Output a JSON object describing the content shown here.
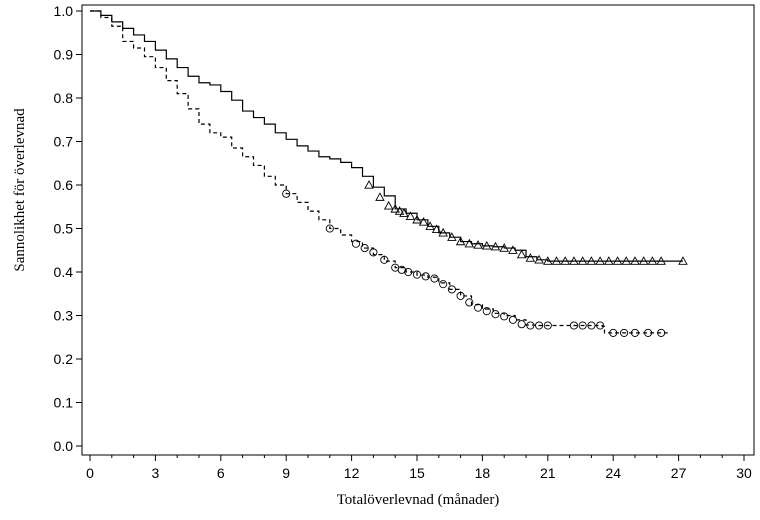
{
  "chart_data": {
    "type": "line",
    "title": "",
    "xlabel": "Totalöverlevnad (månader)",
    "ylabel": "Sannolikhet för överlevnad",
    "xlim": [
      0,
      30
    ],
    "ylim": [
      0,
      1.02
    ],
    "x_ticks": [
      0,
      3,
      6,
      9,
      12,
      15,
      18,
      21,
      24,
      27,
      30
    ],
    "y_ticks": [
      0.0,
      0.1,
      0.2,
      0.3,
      0.4,
      0.5,
      0.6,
      0.7,
      0.8,
      0.9,
      1.0
    ],
    "x_tick_labels": [
      "0",
      "3",
      "6",
      "9",
      "12",
      "15",
      "18",
      "21",
      "24",
      "27",
      "30"
    ],
    "y_tick_labels": [
      "0.0",
      "0.1",
      "0.2",
      "0.3",
      "0.4",
      "0.5",
      "0.6",
      "0.7",
      "0.8",
      "0.9",
      "1.0"
    ],
    "grid": false,
    "series": [
      {
        "line_style": "solid",
        "censor_marker": "triangle",
        "points": [
          [
            0,
            1.0
          ],
          [
            0.5,
            0.99
          ],
          [
            1,
            0.975
          ],
          [
            1.5,
            0.96
          ],
          [
            2,
            0.945
          ],
          [
            2.5,
            0.93
          ],
          [
            3,
            0.91
          ],
          [
            3.5,
            0.89
          ],
          [
            4,
            0.87
          ],
          [
            4.5,
            0.85
          ],
          [
            5,
            0.835
          ],
          [
            5.5,
            0.83
          ],
          [
            6,
            0.815
          ],
          [
            6.5,
            0.795
          ],
          [
            7,
            0.77
          ],
          [
            7.5,
            0.755
          ],
          [
            8,
            0.74
          ],
          [
            8.5,
            0.72
          ],
          [
            9,
            0.705
          ],
          [
            9.5,
            0.69
          ],
          [
            10,
            0.678
          ],
          [
            10.5,
            0.665
          ],
          [
            11,
            0.66
          ],
          [
            11.5,
            0.652
          ],
          [
            12,
            0.64
          ],
          [
            12.5,
            0.62
          ],
          [
            13,
            0.595
          ],
          [
            13.5,
            0.575
          ],
          [
            14,
            0.545
          ],
          [
            14.5,
            0.535
          ],
          [
            15,
            0.52
          ],
          [
            15.5,
            0.505
          ],
          [
            16,
            0.49
          ],
          [
            16.5,
            0.48
          ],
          [
            17,
            0.47
          ],
          [
            17.5,
            0.465
          ],
          [
            18,
            0.46
          ],
          [
            18.5,
            0.458
          ],
          [
            19,
            0.455
          ],
          [
            19.5,
            0.45
          ],
          [
            20,
            0.435
          ],
          [
            20.5,
            0.428
          ],
          [
            21,
            0.425
          ],
          [
            24,
            0.425
          ],
          [
            27.2,
            0.425
          ]
        ],
        "censored": [
          [
            12.8,
            0.6
          ],
          [
            13.3,
            0.572
          ],
          [
            13.7,
            0.552
          ],
          [
            14,
            0.545
          ],
          [
            14.2,
            0.54
          ],
          [
            14.4,
            0.535
          ],
          [
            14.7,
            0.528
          ],
          [
            15,
            0.52
          ],
          [
            15.3,
            0.515
          ],
          [
            15.6,
            0.505
          ],
          [
            15.9,
            0.498
          ],
          [
            16.2,
            0.49
          ],
          [
            16.6,
            0.48
          ],
          [
            17,
            0.47
          ],
          [
            17.4,
            0.465
          ],
          [
            17.8,
            0.462
          ],
          [
            18.2,
            0.46
          ],
          [
            18.6,
            0.458
          ],
          [
            19,
            0.455
          ],
          [
            19.4,
            0.45
          ],
          [
            19.8,
            0.44
          ],
          [
            20.2,
            0.432
          ],
          [
            20.6,
            0.428
          ],
          [
            21,
            0.425
          ],
          [
            21.4,
            0.425
          ],
          [
            21.8,
            0.425
          ],
          [
            22.2,
            0.425
          ],
          [
            22.6,
            0.425
          ],
          [
            23,
            0.425
          ],
          [
            23.4,
            0.425
          ],
          [
            23.8,
            0.425
          ],
          [
            24.2,
            0.425
          ],
          [
            24.6,
            0.425
          ],
          [
            25,
            0.425
          ],
          [
            25.4,
            0.425
          ],
          [
            25.8,
            0.425
          ],
          [
            26.2,
            0.425
          ],
          [
            27.2,
            0.425
          ]
        ]
      },
      {
        "line_style": "dashed",
        "censor_marker": "circle",
        "points": [
          [
            0,
            1.0
          ],
          [
            0.5,
            0.985
          ],
          [
            1,
            0.965
          ],
          [
            1.5,
            0.93
          ],
          [
            2,
            0.915
          ],
          [
            2.5,
            0.895
          ],
          [
            3,
            0.87
          ],
          [
            3.5,
            0.84
          ],
          [
            4,
            0.81
          ],
          [
            4.5,
            0.775
          ],
          [
            5,
            0.74
          ],
          [
            5.5,
            0.72
          ],
          [
            6,
            0.71
          ],
          [
            6.5,
            0.685
          ],
          [
            7,
            0.665
          ],
          [
            7.5,
            0.645
          ],
          [
            8,
            0.62
          ],
          [
            8.5,
            0.6
          ],
          [
            9,
            0.58
          ],
          [
            9.5,
            0.56
          ],
          [
            10,
            0.54
          ],
          [
            10.5,
            0.52
          ],
          [
            11,
            0.5
          ],
          [
            11.5,
            0.485
          ],
          [
            12,
            0.47
          ],
          [
            12.5,
            0.455
          ],
          [
            13,
            0.44
          ],
          [
            13.5,
            0.425
          ],
          [
            14,
            0.41
          ],
          [
            14.5,
            0.4
          ],
          [
            15,
            0.393
          ],
          [
            15.5,
            0.388
          ],
          [
            16,
            0.375
          ],
          [
            16.5,
            0.36
          ],
          [
            17,
            0.345
          ],
          [
            17.5,
            0.325
          ],
          [
            18,
            0.315
          ],
          [
            18.5,
            0.305
          ],
          [
            19,
            0.3
          ],
          [
            19.5,
            0.29
          ],
          [
            20,
            0.278
          ],
          [
            20.5,
            0.277
          ],
          [
            23.5,
            0.275
          ],
          [
            23.6,
            0.26
          ],
          [
            26.5,
            0.26
          ]
        ],
        "censored": [
          [
            9,
            0.58
          ],
          [
            11,
            0.5
          ],
          [
            12.2,
            0.465
          ],
          [
            12.6,
            0.455
          ],
          [
            13,
            0.445
          ],
          [
            13.5,
            0.428
          ],
          [
            14,
            0.41
          ],
          [
            14.3,
            0.405
          ],
          [
            14.6,
            0.4
          ],
          [
            15,
            0.394
          ],
          [
            15.4,
            0.39
          ],
          [
            15.8,
            0.385
          ],
          [
            16.2,
            0.372
          ],
          [
            16.6,
            0.36
          ],
          [
            17,
            0.345
          ],
          [
            17.4,
            0.33
          ],
          [
            17.8,
            0.318
          ],
          [
            18.2,
            0.31
          ],
          [
            18.6,
            0.303
          ],
          [
            19,
            0.298
          ],
          [
            19.4,
            0.29
          ],
          [
            19.8,
            0.28
          ],
          [
            20.2,
            0.277
          ],
          [
            20.6,
            0.277
          ],
          [
            21,
            0.277
          ],
          [
            22.2,
            0.277
          ],
          [
            22.6,
            0.277
          ],
          [
            23,
            0.277
          ],
          [
            23.4,
            0.277
          ],
          [
            24,
            0.26
          ],
          [
            24.5,
            0.26
          ],
          [
            25,
            0.26
          ],
          [
            25.6,
            0.26
          ],
          [
            26.2,
            0.26
          ]
        ]
      }
    ]
  }
}
